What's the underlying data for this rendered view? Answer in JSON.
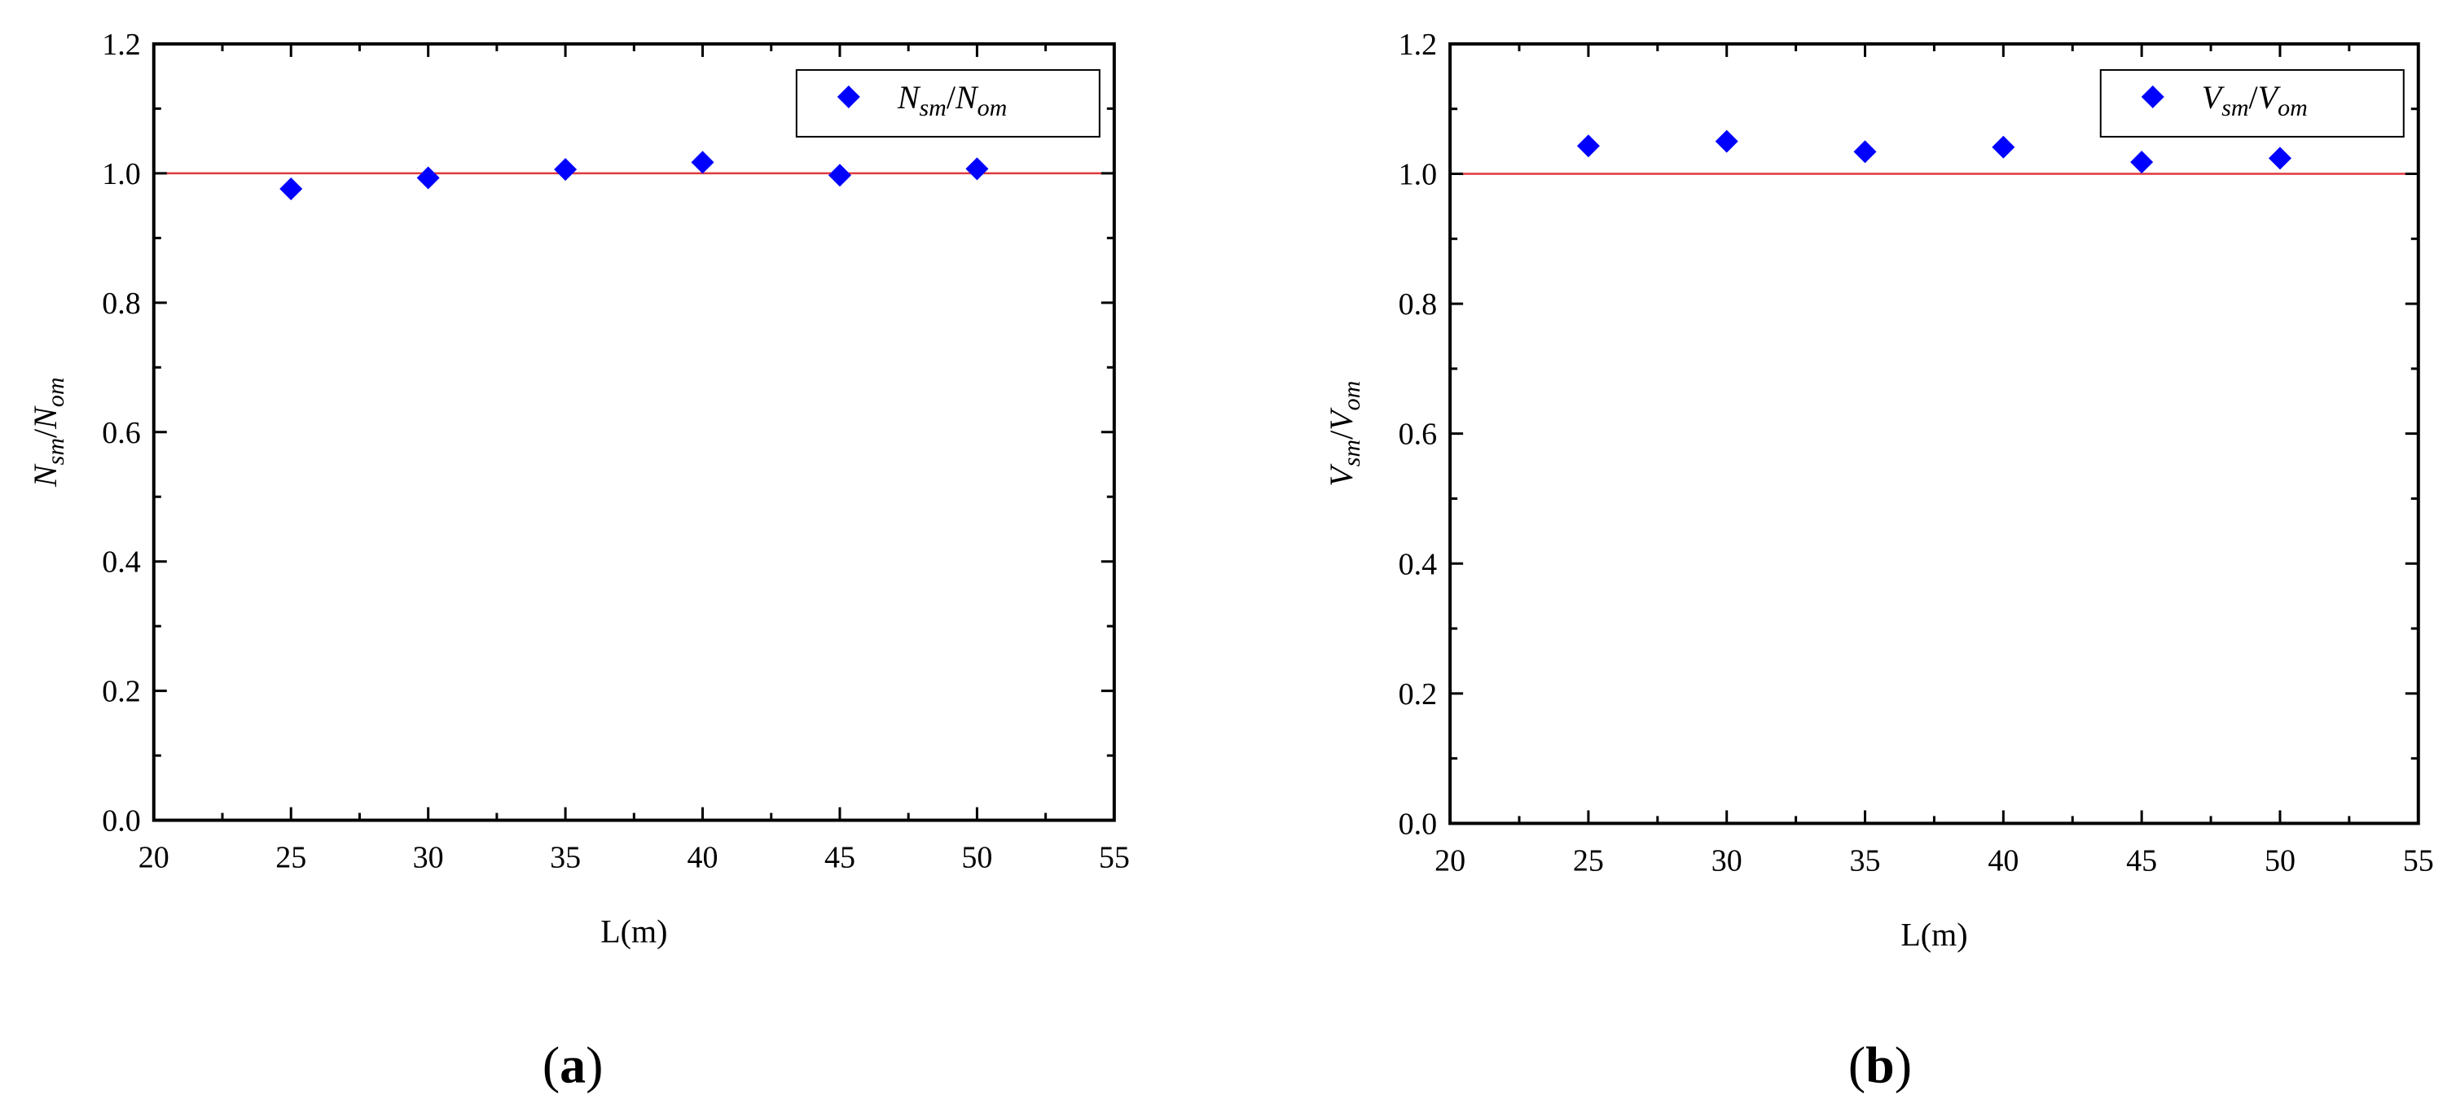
{
  "chart_data": [
    {
      "type": "scatter",
      "panel_label": "(a)",
      "panel_letter": "a",
      "xlabel": "L(m)",
      "ylabel": {
        "base1": "N",
        "sub1": "sm",
        "slash": "/",
        "base2": "N",
        "sub2": "om"
      },
      "legend": {
        "base1": "N",
        "sub1": "sm",
        "slash": "/",
        "base2": "N",
        "sub2": "om",
        "placement": "top-right"
      },
      "xlim": [
        20,
        55
      ],
      "ylim": [
        0.0,
        1.2
      ],
      "xticks": [
        "20",
        "25",
        "30",
        "35",
        "40",
        "45",
        "50",
        "55"
      ],
      "yticks": [
        "0.0",
        "0.2",
        "0.4",
        "0.6",
        "0.8",
        "1.0",
        "1.2"
      ],
      "reference_line_y": 1.0,
      "reference_line_color": "#e0393e",
      "marker_color": "#0000ff",
      "x": [
        25,
        30,
        35,
        40,
        45,
        50
      ],
      "y": [
        0.976,
        0.993,
        1.006,
        1.017,
        0.997,
        1.007
      ]
    },
    {
      "type": "scatter",
      "panel_label": "(b)",
      "panel_letter": "b",
      "xlabel": "L(m)",
      "ylabel": {
        "base1": "V",
        "sub1": "sm",
        "slash": "/",
        "base2": "V",
        "sub2": "om"
      },
      "legend": {
        "base1": "V",
        "sub1": "sm",
        "slash": "/",
        "base2": "V",
        "sub2": "om",
        "placement": "top-right"
      },
      "xlim": [
        20,
        55
      ],
      "ylim": [
        0.0,
        1.2
      ],
      "xticks": [
        "20",
        "25",
        "30",
        "35",
        "40",
        "45",
        "50",
        "55"
      ],
      "yticks": [
        "0.0",
        "0.2",
        "0.4",
        "0.6",
        "0.8",
        "1.0",
        "1.2"
      ],
      "reference_line_y": 1.0,
      "reference_line_color": "#e0393e",
      "marker_color": "#0000ff",
      "x": [
        25,
        30,
        35,
        40,
        45,
        50
      ],
      "y": [
        1.043,
        1.05,
        1.034,
        1.041,
        1.018,
        1.024
      ]
    }
  ]
}
